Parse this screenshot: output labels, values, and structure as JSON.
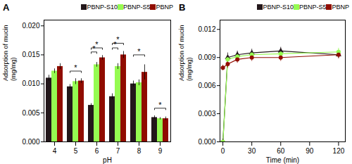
{
  "chart_data": [
    {
      "type": "bar",
      "title": "A",
      "xlabel": "pH",
      "ylabel": "Adsorption of mucin\n(mg/mg)",
      "categories": [
        "4",
        "5",
        "6",
        "7",
        "8",
        "9"
      ],
      "series": [
        {
          "name": "PBNP-S10",
          "values": [
            0.011,
            0.0095,
            0.0063,
            0.0078,
            0.01,
            0.0042
          ],
          "errors": [
            0.0005,
            0.0004,
            0.0003,
            0.0005,
            0.0005,
            0.0003
          ]
        },
        {
          "name": "PBNP-S5",
          "values": [
            0.0122,
            0.0104,
            0.0133,
            0.013,
            0.0102,
            0.004
          ],
          "errors": [
            0.0004,
            0.0005,
            0.0004,
            0.0005,
            0.0005,
            0.0002
          ]
        },
        {
          "name": "PBNP",
          "values": [
            0.013,
            0.0105,
            0.0145,
            0.015,
            0.012,
            0.004
          ],
          "errors": [
            0.0005,
            0.0004,
            0.0004,
            0.0006,
            0.0013,
            0.0003
          ]
        }
      ],
      "ylim": [
        0,
        0.021
      ],
      "yticks": [
        {
          "value": 0,
          "label": "0.000"
        },
        {
          "value": 0.005,
          "label": "0.005"
        },
        {
          "value": 0.01,
          "label": "0.010"
        },
        {
          "value": 0.015,
          "label": "0.015"
        },
        {
          "value": 0.02,
          "label": "0.020"
        }
      ],
      "legend": "upper right",
      "annotations": [
        {
          "text": "*",
          "category": "5",
          "from": "PBNP-S10",
          "to": "PBNP",
          "y": 0.0122
        },
        {
          "text": "*",
          "category": "6",
          "from": "PBNP-S10",
          "to": "PBNP-S5",
          "y": 0.0155
        },
        {
          "text": "*",
          "category": "6",
          "from": "PBNP-S10",
          "to": "PBNP",
          "y": 0.0162
        },
        {
          "text": "*",
          "category": "7",
          "from": "PBNP-S10",
          "to": "PBNP-S5",
          "y": 0.0162
        },
        {
          "text": "*",
          "category": "7",
          "from": "PBNP-S10",
          "to": "PBNP",
          "y": 0.017
        },
        {
          "text": "*",
          "category": "8",
          "from": "PBNP-S10",
          "to": "PBNP",
          "y": 0.015
        },
        {
          "text": "*",
          "category": "9",
          "from": "PBNP-S10",
          "to": "PBNP",
          "y": 0.0058
        }
      ]
    },
    {
      "type": "line",
      "title": "B",
      "xlabel": "Time (min)",
      "ylabel": "Adsorption of mucin\n(mg/mg)",
      "x": [
        0,
        5,
        15,
        30,
        60,
        120
      ],
      "series": [
        {
          "name": "PBNP-S10",
          "marker": "triangle",
          "values": [
            0.0,
            0.009,
            0.0093,
            0.0095,
            0.0097,
            0.0093
          ],
          "errors": [
            0.0,
            0.0005,
            0.0004,
            0.0004,
            0.0004,
            0.0004
          ]
        },
        {
          "name": "PBNP-S5",
          "marker": "hexagon",
          "values": [
            0.0,
            0.0088,
            0.0091,
            0.0093,
            0.0094,
            0.0096
          ],
          "errors": [
            0.0,
            0.0004,
            0.0004,
            0.0004,
            0.0004,
            0.0004
          ]
        },
        {
          "name": "PBNP",
          "marker": "circle",
          "values": [
            0.0079,
            0.0083,
            0.0088,
            0.009,
            0.009,
            0.0093
          ],
          "errors": [
            0.0003,
            0.0004,
            0.0004,
            0.0004,
            0.0004,
            0.0004
          ]
        }
      ],
      "xlim": [
        -3,
        127
      ],
      "xticks": [
        0,
        30,
        60,
        90,
        120
      ],
      "ylim": [
        0,
        0.013
      ],
      "yticks": [
        {
          "value": 0,
          "label": "0.000"
        },
        {
          "value": 0.003,
          "label": "0.003"
        },
        {
          "value": 0.006,
          "label": "0.006"
        },
        {
          "value": 0.009,
          "label": "0.009"
        },
        {
          "value": 0.012,
          "label": "0.012"
        }
      ],
      "legend": "upper right"
    }
  ]
}
